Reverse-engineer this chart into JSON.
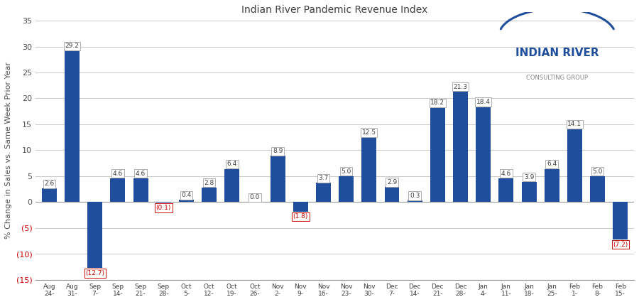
{
  "categories": [
    "Aug\n24-",
    "Aug\n31-",
    "Sep\n7-",
    "Sep\n14-",
    "Sep\n21-",
    "Sep\n28-",
    "Oct\n5-",
    "Oct\n12-",
    "Oct\n19-",
    "Oct\n26-",
    "Nov\n2-",
    "Nov\n9-",
    "Nov\n16-",
    "Nov\n23-",
    "Nov\n30-",
    "Dec\n7-",
    "Dec\n14-",
    "Dec\n21-",
    "Dec\n28-",
    "Jan\n4-",
    "Jan\n11-",
    "Jan\n18-",
    "Jan\n25-",
    "Feb\n1-",
    "Feb\n8-",
    "Feb\n15-"
  ],
  "values": [
    2.6,
    29.2,
    -12.7,
    4.6,
    4.6,
    -0.1,
    0.4,
    2.8,
    6.4,
    0.0,
    8.9,
    -1.8,
    3.7,
    5.0,
    12.5,
    2.9,
    0.3,
    18.2,
    21.3,
    18.4,
    4.6,
    3.9,
    6.4,
    14.1,
    5.0,
    -7.2
  ],
  "labels": [
    "2.6",
    "29.2",
    "(12.7)",
    "4.6",
    "4.6",
    "(0.1)",
    "0.4",
    "2.8",
    "6.4",
    "0.0",
    "8.9",
    "(1.8)",
    "3.7",
    "5.0",
    "12.5",
    "2.9",
    "0.3",
    "18.2",
    "21.3",
    "18.4",
    "4.6",
    "3.9",
    "6.4",
    "14.1",
    "5.0",
    "(7.2)"
  ],
  "title": "Indian River Pandemic Revenue Index",
  "ylabel": "% Change in Sales vs. Same Week Prior Year",
  "bar_color": "#1F4E9C",
  "label_color_positive": "#404040",
  "label_color_negative": "#CC0000",
  "ylim": [
    -15,
    35
  ],
  "yticks": [
    -15,
    -10,
    -5,
    0,
    5,
    10,
    15,
    20,
    25,
    30,
    35
  ],
  "background_color": "#FFFFFF",
  "grid_color": "#CCCCCC",
  "logo_main": "INDIAN RIVER",
  "logo_sub": "CONSULTING GROUP"
}
